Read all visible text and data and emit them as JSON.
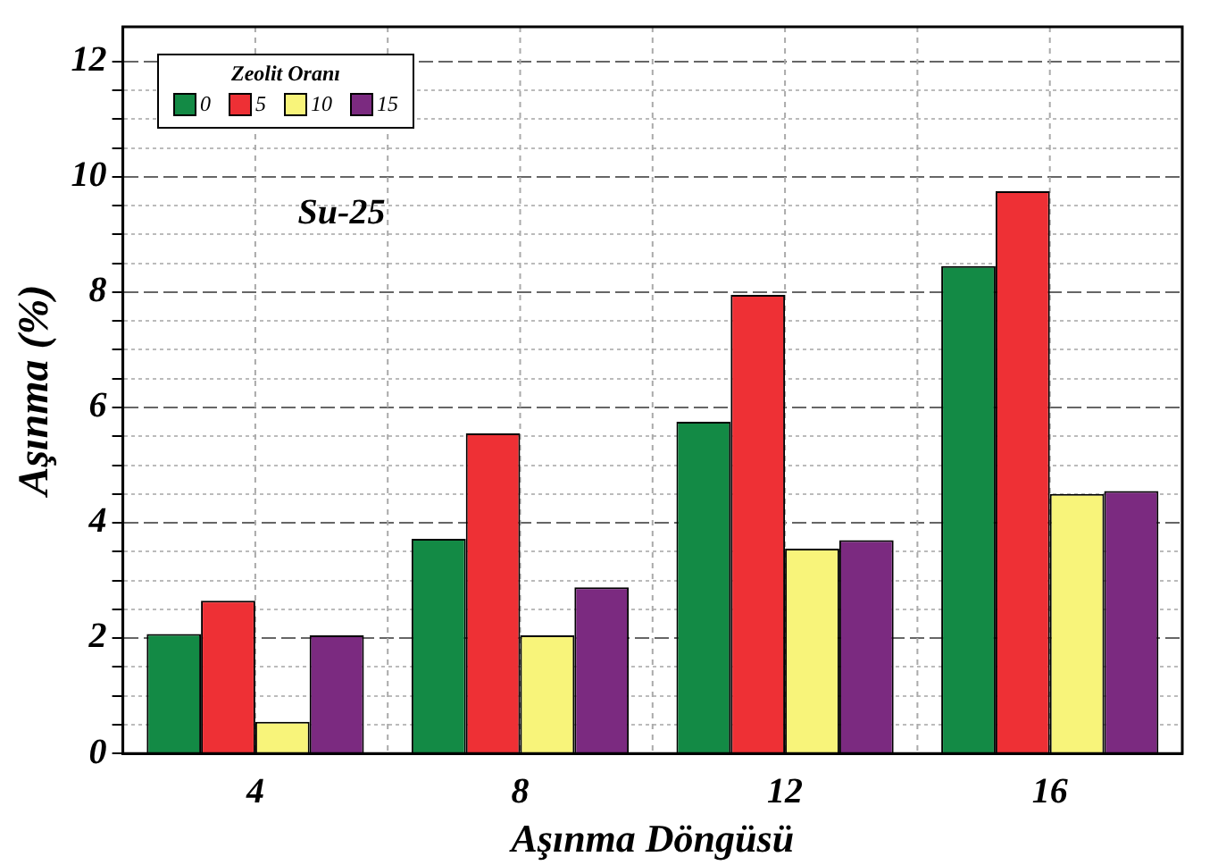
{
  "chart_data": {
    "type": "bar",
    "xlabel": "Aşınma Döngüsü",
    "ylabel": "Aşınma (%)",
    "legend_title": "Zeolit Oranı",
    "legend": "top left",
    "grid": true,
    "categories": [
      "4",
      "8",
      "12",
      "16"
    ],
    "series": [
      {
        "name": "0",
        "color": "#138a45",
        "values": [
          2.07,
          3.72,
          5.75,
          8.45
        ]
      },
      {
        "name": "5",
        "color": "#ee3035",
        "values": [
          2.65,
          5.55,
          7.95,
          9.75
        ]
      },
      {
        "name": "10",
        "color": "#f8f47a",
        "values": [
          0.55,
          2.05,
          3.55,
          4.5
        ]
      },
      {
        "name": "15",
        "color": "#7b2a80",
        "values": [
          2.05,
          2.88,
          3.7,
          4.55
        ]
      }
    ],
    "ylim": [
      0,
      12.6
    ],
    "yticks": [
      0,
      {
        "value": 0.5,
        "label": null
      },
      {
        "value": 1,
        "label": null
      },
      {
        "value": 1.5,
        "label": null
      },
      2,
      {
        "value": 2.5,
        "label": null
      },
      {
        "value": 3,
        "label": null
      },
      {
        "value": 3.5,
        "label": null
      },
      4,
      {
        "value": 4.5,
        "label": null
      },
      {
        "value": 5,
        "label": null
      },
      {
        "value": 5.5,
        "label": null
      },
      6,
      {
        "value": 6.5,
        "label": null
      },
      {
        "value": 7,
        "label": null
      },
      {
        "value": 7.5,
        "label": null
      },
      8,
      {
        "value": 8.5,
        "label": null
      },
      {
        "value": 9,
        "label": null
      },
      {
        "value": 9.5,
        "label": null
      },
      10,
      {
        "value": 10.5,
        "label": null
      },
      {
        "value": 11,
        "label": null
      },
      {
        "value": 11.5,
        "label": null
      },
      12
    ],
    "annotations": [
      "Su-25"
    ]
  }
}
